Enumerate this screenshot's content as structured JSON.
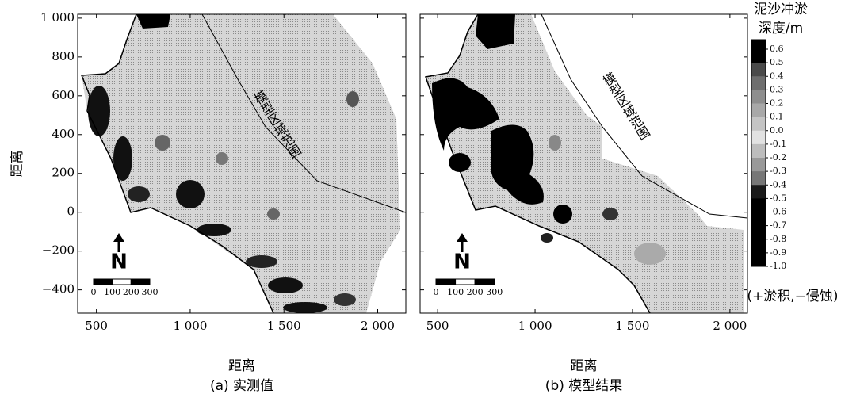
{
  "chart_data": [
    {
      "type": "map",
      "caption": "(a) 实测值",
      "xlabel": "距离",
      "ylabel": "距离",
      "annotation": "模型区域范围",
      "north_label": "N",
      "scale_bar": [
        0,
        100,
        200,
        300
      ],
      "xlim": [
        400,
        2150
      ],
      "ylim": [
        -520,
        1020
      ],
      "xticks": [
        500,
        {
          "value": 1000,
          "label": "1 000"
        },
        {
          "value": 1500,
          "label": "1 500"
        },
        {
          "value": 2000,
          "label": "2 000"
        }
      ],
      "yticks": [
        {
          "value": -400,
          "label": "−400"
        },
        {
          "value": -200,
          "label": "−200"
        },
        0,
        200,
        400,
        600,
        800,
        {
          "value": 1000,
          "label": "1 000"
        }
      ]
    },
    {
      "type": "map",
      "caption": "(b) 模型结果",
      "xlabel": "距离",
      "annotation": "模型区域范围",
      "north_label": "N",
      "scale_bar": [
        0,
        100,
        200,
        300
      ],
      "xlim": [
        410,
        2090
      ],
      "ylim": [
        -520,
        1020
      ],
      "xticks": [
        500,
        {
          "value": 1000,
          "label": "1 000"
        },
        {
          "value": 1500,
          "label": "1 500"
        },
        {
          "value": 2000,
          "label": "2 000"
        }
      ],
      "colorbar": {
        "title": [
          "泥沙冲淤",
          "深度/m"
        ],
        "note": "(+淤积,−侵蚀)",
        "ticks": [
          0.6,
          0.5,
          0.4,
          0.3,
          0.2,
          0.1,
          {
            "value": 0,
            "label": "0.0"
          },
          -0.1,
          -0.2,
          -0.3,
          -0.4,
          -0.5,
          -0.6,
          -0.7,
          -0.8,
          -0.9,
          {
            "value": -1,
            "label": "-1.0"
          }
        ],
        "colors": [
          "#000000",
          "#4a4a4a",
          "#6e6e6e",
          "#8e8e8e",
          "#a8a8a8",
          "#c4c4c4",
          "#e2e2e2",
          "#bdbdbd",
          "#999999",
          "#777777",
          "#1a1a1a",
          "#000000",
          "#000000",
          "#000000",
          "#000000",
          "#000000"
        ]
      }
    }
  ]
}
